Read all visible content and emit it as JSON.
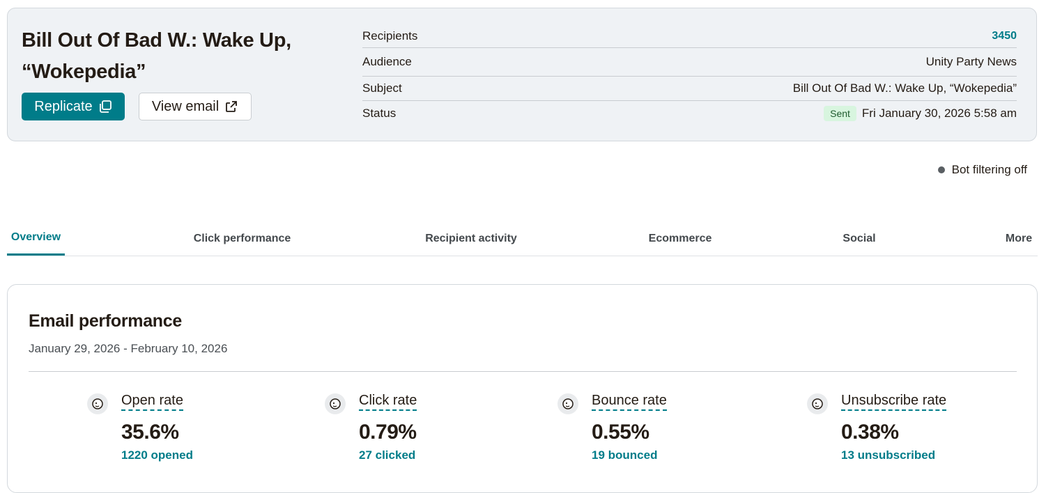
{
  "campaign": {
    "title": "Bill Out Of Bad W.: Wake Up, “Wokepedia”",
    "replicate_label": "Replicate",
    "view_email_label": "View email"
  },
  "details": {
    "recipients_label": "Recipients",
    "recipients_value": "3450",
    "audience_label": "Audience",
    "audience_value": "Unity Party News",
    "subject_label": "Subject",
    "subject_value": "Bill Out Of Bad W.: Wake Up, “Wokepedia”",
    "status_label": "Status",
    "status_badge": "Sent",
    "status_date": "Fri January 30, 2026 5:58 am"
  },
  "bot_filtering": "Bot filtering off",
  "tabs": [
    {
      "label": "Overview",
      "active": true
    },
    {
      "label": "Click performance"
    },
    {
      "label": "Recipient activity"
    },
    {
      "label": "Ecommerce"
    },
    {
      "label": "Social"
    },
    {
      "label": "More"
    }
  ],
  "performance": {
    "title": "Email performance",
    "date_range": "January 29, 2026 - February 10, 2026",
    "metrics": [
      {
        "label": "Open rate",
        "value": "35.6%",
        "sub": "1220 opened",
        "icon": "mailchimp-freddie-icon"
      },
      {
        "label": "Click rate",
        "value": "0.79%",
        "sub": "27 clicked",
        "icon": "mailchimp-freddie-icon"
      },
      {
        "label": "Bounce rate",
        "value": "0.55%",
        "sub": "19 bounced",
        "icon": "mailchimp-freddie-icon"
      },
      {
        "label": "Unsubscribe rate",
        "value": "0.38%",
        "sub": "13 unsubscribed",
        "icon": "mailchimp-freddie-icon"
      }
    ]
  },
  "colors": {
    "accent": "#007c89",
    "summary_bg": "#eff2f5",
    "sent_badge_bg": "#d8f5df"
  }
}
